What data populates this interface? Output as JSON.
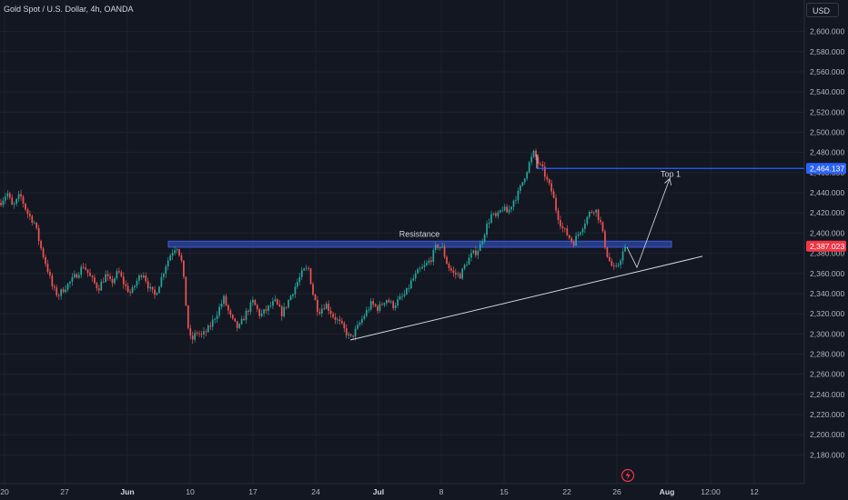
{
  "header": {
    "title": "Gold Spot / U.S. Dollar, 4h, OANDA",
    "currency": "USD"
  },
  "colors": {
    "background": "#131722",
    "up": "#26a69a",
    "down": "#ef5350",
    "zone": "#2a3f8f",
    "zone_border": "#3b5bdb",
    "top_line": "#2962ff",
    "current_price": "#f23645",
    "axis_text": "#b2b5be",
    "trendline": "#d1d4dc"
  },
  "chart_data": {
    "type": "candlestick",
    "symbol": "XAUUSD",
    "timeframe": "4h",
    "ylim": [
      2170,
      2610
    ],
    "yticks": [
      2180,
      2200,
      2220,
      2240,
      2260,
      2280,
      2300,
      2320,
      2340,
      2360,
      2380,
      2400,
      2420,
      2440,
      2460,
      2480,
      2500,
      2520,
      2540,
      2560,
      2580,
      2600
    ],
    "ytick_labels": [
      "2,180.000",
      "2,200.000",
      "2,220.000",
      "2,240.000",
      "2,260.000",
      "2,280.000",
      "2,300.000",
      "2,320.000",
      "2,340.000",
      "2,360.000",
      "2,380.000",
      "2,400.000",
      "2,420.000",
      "2,440.000",
      "2,460.000",
      "2,480.000",
      "2,500.000",
      "2,520.000",
      "2,540.000",
      "2,560.000",
      "2,580.000",
      "2,600.000"
    ],
    "xticks": [
      {
        "label": "20"
      },
      {
        "label": "27"
      },
      {
        "label": "Jun",
        "bold": true
      },
      {
        "label": "10"
      },
      {
        "label": "17"
      },
      {
        "label": "24"
      },
      {
        "label": "Jul",
        "bold": true
      },
      {
        "label": "8"
      },
      {
        "label": "15"
      },
      {
        "label": "22"
      },
      {
        "label": "26"
      },
      {
        "label": "Aug",
        "bold": true
      },
      {
        "label": "12:00"
      },
      {
        "label": "12"
      }
    ],
    "price_path": [
      [
        0,
        2430
      ],
      [
        8,
        2440
      ],
      [
        14,
        2425
      ],
      [
        22,
        2438
      ],
      [
        30,
        2420
      ],
      [
        38,
        2410
      ],
      [
        45,
        2385
      ],
      [
        52,
        2365
      ],
      [
        58,
        2345
      ],
      [
        64,
        2338
      ],
      [
        70,
        2345
      ],
      [
        78,
        2352
      ],
      [
        85,
        2360
      ],
      [
        92,
        2368
      ],
      [
        100,
        2355
      ],
      [
        108,
        2345
      ],
      [
        116,
        2358
      ],
      [
        122,
        2350
      ],
      [
        130,
        2362
      ],
      [
        137,
        2348
      ],
      [
        144,
        2340
      ],
      [
        150,
        2352
      ],
      [
        157,
        2362
      ],
      [
        164,
        2345
      ],
      [
        170,
        2338
      ],
      [
        176,
        2352
      ],
      [
        182,
        2368
      ],
      [
        188,
        2380
      ],
      [
        194,
        2388
      ],
      [
        199,
        2375
      ],
      [
        203,
        2345
      ],
      [
        206,
        2310
      ],
      [
        210,
        2292
      ],
      [
        216,
        2302
      ],
      [
        222,
        2298
      ],
      [
        230,
        2306
      ],
      [
        238,
        2320
      ],
      [
        246,
        2335
      ],
      [
        254,
        2315
      ],
      [
        262,
        2305
      ],
      [
        270,
        2320
      ],
      [
        278,
        2332
      ],
      [
        286,
        2318
      ],
      [
        294,
        2325
      ],
      [
        302,
        2332
      ],
      [
        310,
        2320
      ],
      [
        318,
        2335
      ],
      [
        326,
        2350
      ],
      [
        333,
        2362
      ],
      [
        339,
        2365
      ],
      [
        344,
        2340
      ],
      [
        350,
        2322
      ],
      [
        358,
        2330
      ],
      [
        366,
        2318
      ],
      [
        374,
        2310
      ],
      [
        380,
        2302
      ],
      [
        385,
        2295
      ],
      [
        392,
        2305
      ],
      [
        400,
        2318
      ],
      [
        408,
        2330
      ],
      [
        416,
        2325
      ],
      [
        424,
        2335
      ],
      [
        432,
        2328
      ],
      [
        440,
        2335
      ],
      [
        446,
        2340
      ],
      [
        452,
        2352
      ],
      [
        460,
        2362
      ],
      [
        468,
        2368
      ],
      [
        474,
        2375
      ],
      [
        480,
        2388
      ],
      [
        486,
        2385
      ],
      [
        492,
        2368
      ],
      [
        498,
        2360
      ],
      [
        506,
        2358
      ],
      [
        512,
        2370
      ],
      [
        518,
        2378
      ],
      [
        524,
        2382
      ],
      [
        528,
        2388
      ],
      [
        534,
        2405
      ],
      [
        540,
        2418
      ],
      [
        546,
        2415
      ],
      [
        552,
        2425
      ],
      [
        558,
        2420
      ],
      [
        564,
        2432
      ],
      [
        570,
        2440
      ],
      [
        576,
        2455
      ],
      [
        582,
        2470
      ],
      [
        587,
        2480
      ],
      [
        592,
        2468
      ],
      [
        597,
        2462
      ],
      [
        602,
        2450
      ],
      [
        607,
        2440
      ],
      [
        612,
        2420
      ],
      [
        618,
        2405
      ],
      [
        624,
        2398
      ],
      [
        630,
        2390
      ],
      [
        636,
        2400
      ],
      [
        642,
        2410
      ],
      [
        648,
        2420
      ],
      [
        654,
        2425
      ],
      [
        660,
        2410
      ],
      [
        664,
        2392
      ],
      [
        668,
        2376
      ],
      [
        672,
        2368
      ],
      [
        676,
        2362
      ],
      [
        680,
        2370
      ],
      [
        684,
        2380
      ],
      [
        689,
        2387
      ]
    ],
    "resistance": {
      "label": "Resistance",
      "from": 2386,
      "to": 2392
    },
    "target": {
      "label": "Top 1",
      "price": 2464.137,
      "price_label": "2,464.137"
    },
    "current_price": {
      "price": 2387.023,
      "price_label": "2,387.023"
    },
    "trendline": {
      "p1": [
        385,
        2294
      ],
      "p2": [
        772,
        2377
      ]
    },
    "projection": [
      [
        689,
        2386
      ],
      [
        700,
        2366
      ],
      [
        736,
        2454
      ]
    ]
  }
}
